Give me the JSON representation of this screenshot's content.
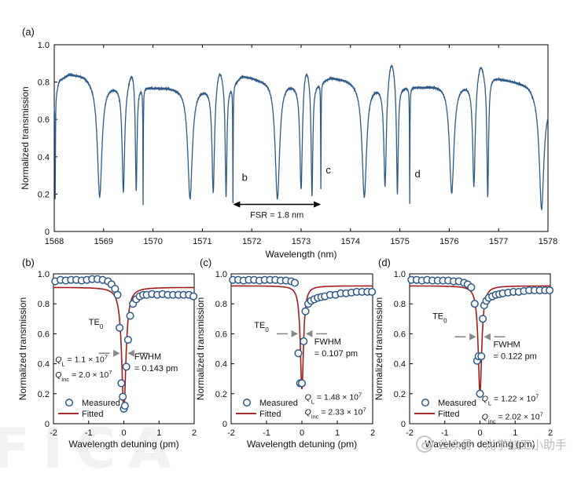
{
  "chart_data": [
    {
      "panel": "(a)",
      "type": "line",
      "xlabel": "Wavelength (nm)",
      "ylabel": "Normalized transmission",
      "xlim": [
        1568,
        1578
      ],
      "ylim": [
        0,
        1.0
      ],
      "xticks": [
        1568,
        1569,
        1570,
        1571,
        1572,
        1573,
        1574,
        1575,
        1576,
        1577,
        1578
      ],
      "yticks": [
        "0",
        "0.2",
        "0.4",
        "0.6",
        "0.8",
        "1.0"
      ],
      "series_color": "#2e5a88",
      "baseline": {
        "x": [
          1568.0,
          1568.1,
          1568.3,
          1568.6,
          1568.9,
          1569.3,
          1569.6,
          1570.0,
          1570.4,
          1570.8,
          1571.2,
          1571.6,
          1571.8,
          1572.2,
          1572.6,
          1572.9,
          1573.3,
          1573.6,
          1573.9,
          1574.2,
          1574.6,
          1574.9,
          1575.2,
          1575.5,
          1575.8,
          1576.1,
          1576.6,
          1576.8,
          1577.1,
          1577.6,
          1578.0
        ],
        "y": [
          0.7,
          0.81,
          0.845,
          0.84,
          0.8,
          0.79,
          0.79,
          0.775,
          0.775,
          0.775,
          0.78,
          0.79,
          0.84,
          0.82,
          0.82,
          0.8,
          0.8,
          0.83,
          0.82,
          0.8,
          0.79,
          0.79,
          0.78,
          0.78,
          0.79,
          0.8,
          0.8,
          0.84,
          0.82,
          0.79,
          0.7
        ]
      },
      "resonances": [
        {
          "x": 1568.02,
          "depth": 0.16,
          "width": 0.01
        },
        {
          "x": 1568.92,
          "depth": 0.19,
          "width": 0.11
        },
        {
          "x": 1569.4,
          "depth": 0.22,
          "width": 0.06
        },
        {
          "x": 1569.66,
          "depth": 0.19,
          "width": 0.04
        },
        {
          "x": 1569.8,
          "depth": 0.16,
          "width": 0.01
        },
        {
          "x": 1570.75,
          "depth": 0.18,
          "width": 0.11
        },
        {
          "x": 1571.22,
          "depth": 0.21,
          "width": 0.06
        },
        {
          "x": 1571.48,
          "depth": 0.19,
          "width": 0.04
        },
        {
          "x": 1571.62,
          "depth": 0.16,
          "width": 0.01
        },
        {
          "x": 1572.52,
          "depth": 0.18,
          "width": 0.11
        },
        {
          "x": 1573.0,
          "depth": 0.21,
          "width": 0.06
        },
        {
          "x": 1573.22,
          "depth": 0.19,
          "width": 0.04
        },
        {
          "x": 1573.4,
          "depth": 0.24,
          "width": 0.01
        },
        {
          "x": 1574.28,
          "depth": 0.19,
          "width": 0.11
        },
        {
          "x": 1574.7,
          "depth": 0.24,
          "width": 0.06
        },
        {
          "x": 1574.95,
          "depth": 0.19,
          "width": 0.04
        },
        {
          "x": 1575.2,
          "depth": 0.16,
          "width": 0.01
        },
        {
          "x": 1576.05,
          "depth": 0.21,
          "width": 0.11
        },
        {
          "x": 1576.5,
          "depth": 0.24,
          "width": 0.06
        },
        {
          "x": 1576.78,
          "depth": 0.19,
          "width": 0.04
        },
        {
          "x": 1577.87,
          "depth": 0.12,
          "width": 0.11
        }
      ],
      "peaks": [
        {
          "x": 1569.58,
          "y": 0.88
        },
        {
          "x": 1571.35,
          "y": 0.89
        },
        {
          "x": 1573.1,
          "y": 0.91
        },
        {
          "x": 1574.83,
          "y": 0.94
        },
        {
          "x": 1576.63,
          "y": 0.92
        }
      ],
      "annotations": [
        {
          "text": "b",
          "x": 1571.8,
          "y": 0.27
        },
        {
          "text": "c",
          "x": 1573.5,
          "y": 0.31
        },
        {
          "text": "d",
          "x": 1575.3,
          "y": 0.29
        }
      ],
      "fsr": {
        "label": "FSR = 1.8 nm",
        "x_from": 1571.62,
        "x_to": 1573.4,
        "y": 0.145
      }
    },
    {
      "panel": "(b)",
      "type": "scatter+line",
      "xlabel": "Wavelength detuning (pm)",
      "ylabel": "Normalized transmission",
      "xlim": [
        -2,
        2
      ],
      "ylim": [
        0,
        1.0
      ],
      "xticks": [
        "-2",
        "-1",
        "0",
        "1",
        "2"
      ],
      "yticks": [
        "0",
        "0.2",
        "0.4",
        "0.6",
        "0.8",
        "1.0"
      ],
      "mode": "TE",
      "mode_sub": "0",
      "fwhm_label": "FWHM",
      "fwhm_value": "= 0.143 pm",
      "ql_value": "= 1.1 × 10",
      "ql_exp": "7",
      "qinc_value": "= 2.0 × 10",
      "qinc_exp": "7",
      "measured_x": [
        -1.95,
        -1.8,
        -1.65,
        -1.5,
        -1.35,
        -1.2,
        -1.05,
        -0.9,
        -0.75,
        -0.6,
        -0.45,
        -0.35,
        -0.25,
        -0.18,
        -0.12,
        -0.07,
        -0.03,
        0.0,
        0.03,
        0.07,
        0.12,
        0.18,
        0.26,
        0.35,
        0.45,
        0.55,
        0.65,
        0.8,
        0.95,
        1.1,
        1.25,
        1.4,
        1.55,
        1.7,
        1.85,
        1.98
      ],
      "measured_y": [
        0.95,
        0.96,
        0.955,
        0.96,
        0.96,
        0.955,
        0.96,
        0.965,
        0.965,
        0.96,
        0.95,
        0.93,
        0.9,
        0.86,
        0.64,
        0.27,
        0.18,
        0.1,
        0.12,
        0.38,
        0.56,
        0.72,
        0.8,
        0.83,
        0.85,
        0.86,
        0.86,
        0.865,
        0.86,
        0.865,
        0.86,
        0.86,
        0.86,
        0.86,
        0.86,
        0.85
      ],
      "fit_baseline": 0.91,
      "fit_depth": 0.83,
      "fit_fwhm": 0.143,
      "legend": [
        "Measured",
        "Fitted"
      ]
    },
    {
      "panel": "(c)",
      "type": "scatter+line",
      "xlabel": "Wavelength detuning (pm)",
      "ylabel": "Normalized transmission",
      "xlim": [
        -2,
        2
      ],
      "ylim": [
        0,
        1.0
      ],
      "xticks": [
        "-2",
        "-1",
        "0",
        "1",
        "2"
      ],
      "yticks": [
        "0",
        "0.2",
        "0.4",
        "0.6",
        "0.8",
        "1.0"
      ],
      "mode": "TE",
      "mode_sub": "0",
      "fwhm_label": "FWHM",
      "fwhm_value": "= 0.107 pm",
      "ql_value": "= 1.48 × 10",
      "ql_exp": "7",
      "qinc_value": "= 2.33 × 10",
      "qinc_exp": "7",
      "measured_x": [
        -1.95,
        -1.8,
        -1.65,
        -1.5,
        -1.35,
        -1.2,
        -1.05,
        -0.9,
        -0.75,
        -0.6,
        -0.45,
        -0.3,
        -0.2,
        -0.1,
        -0.05,
        0.0,
        0.05,
        0.1,
        0.18,
        0.26,
        0.35,
        0.45,
        0.55,
        0.65,
        0.8,
        0.95,
        1.1,
        1.25,
        1.4,
        1.55,
        1.7,
        1.85,
        1.98
      ],
      "measured_y": [
        0.96,
        0.96,
        0.955,
        0.96,
        0.96,
        0.955,
        0.96,
        0.96,
        0.96,
        0.955,
        0.955,
        0.95,
        0.94,
        0.47,
        0.27,
        0.27,
        0.55,
        0.75,
        0.8,
        0.82,
        0.83,
        0.84,
        0.845,
        0.85,
        0.86,
        0.86,
        0.87,
        0.87,
        0.875,
        0.88,
        0.88,
        0.88,
        0.88
      ],
      "fit_baseline": 0.92,
      "fit_depth": 0.69,
      "fit_fwhm": 0.107,
      "legend": [
        "Measured",
        "Fitted"
      ]
    },
    {
      "panel": "(d)",
      "type": "scatter+line",
      "xlabel": "Wavelength detuning (pm)",
      "ylabel": "Normalized transmission",
      "xlim": [
        -2,
        2
      ],
      "ylim": [
        0,
        1.0
      ],
      "xticks": [
        "-2",
        "-1",
        "0",
        "1",
        "2"
      ],
      "yticks": [
        "0",
        "0.2",
        "0.4",
        "0.6",
        "0.8",
        "1.0"
      ],
      "mode": "TE",
      "mode_sub": "0",
      "fwhm_label": "FWHM",
      "fwhm_value": "= 0.122 pm",
      "ql_value": "= 1.22 × 10",
      "ql_exp": "7",
      "qinc_value": "= 2.02 × 10",
      "qinc_exp": "7",
      "measured_x": [
        -1.95,
        -1.8,
        -1.65,
        -1.5,
        -1.35,
        -1.2,
        -1.05,
        -0.9,
        -0.75,
        -0.6,
        -0.45,
        -0.35,
        -0.25,
        -0.15,
        -0.08,
        -0.04,
        0.0,
        0.04,
        0.08,
        0.12,
        0.18,
        0.25,
        0.35,
        0.45,
        0.55,
        0.65,
        0.8,
        0.95,
        1.1,
        1.25,
        1.4,
        1.55,
        1.7,
        1.85,
        1.98
      ],
      "measured_y": [
        0.96,
        0.96,
        0.955,
        0.96,
        0.955,
        0.955,
        0.955,
        0.955,
        0.95,
        0.95,
        0.94,
        0.93,
        0.91,
        0.8,
        0.42,
        0.45,
        0.2,
        0.45,
        0.7,
        0.79,
        0.82,
        0.84,
        0.85,
        0.86,
        0.865,
        0.87,
        0.875,
        0.88,
        0.88,
        0.885,
        0.89,
        0.89,
        0.89,
        0.89,
        0.89
      ],
      "fit_baseline": 0.92,
      "fit_depth": 0.72,
      "fit_fwhm": 0.122,
      "legend": [
        "Measured",
        "Fitted"
      ]
    }
  ],
  "colors": {
    "trace": "#2e5a88",
    "fit": "#a11c1c",
    "marker_edge": "#2e5a88",
    "arrow": "#888888"
  },
  "watermark": {
    "text": "公众号 · 光学加工小助手",
    "icon": "wechat-icon"
  },
  "ghost_text": "FICA"
}
